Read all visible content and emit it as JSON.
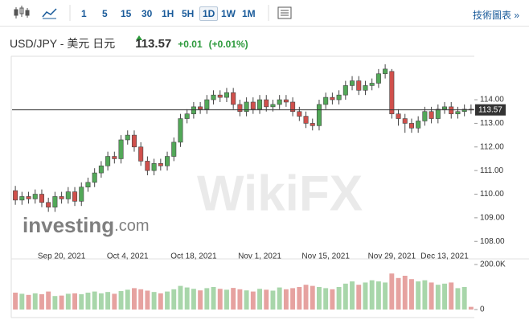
{
  "toolbar": {
    "intervals": [
      "1",
      "5",
      "15",
      "30",
      "1H",
      "5H",
      "1D",
      "1W",
      "1M"
    ],
    "selected_index": 6,
    "link": "技術圖表 »"
  },
  "header": {
    "title": "USD/JPY - 美元 日元",
    "last": 113.57,
    "change": "+0.01",
    "change_pct": "(+0.01%)"
  },
  "watermark": {
    "logo": "investing",
    "domain": ".com",
    "brand": "WikiFX"
  },
  "chart_data": {
    "type": "candlestick",
    "categories": [
      null,
      null,
      null,
      null,
      null,
      null,
      null,
      "Sep 20, 2021",
      null,
      null,
      null,
      null,
      null,
      null,
      null,
      null,
      null,
      "Oct 4, 2021",
      null,
      null,
      null,
      null,
      null,
      null,
      null,
      null,
      null,
      "Oct 18, 2021",
      null,
      null,
      null,
      null,
      null,
      null,
      null,
      null,
      null,
      "Nov 1, 2021",
      null,
      null,
      null,
      null,
      null,
      null,
      null,
      null,
      null,
      "Nov 15, 2021",
      null,
      null,
      null,
      null,
      null,
      null,
      null,
      null,
      null,
      "Nov 29, 2021",
      null,
      null,
      null,
      null,
      null,
      null,
      null,
      "Dec 13, 2021",
      null,
      null,
      null,
      null
    ],
    "open": [
      110.15,
      109.75,
      109.9,
      109.8,
      110.0,
      109.65,
      109.45,
      109.9,
      109.8,
      110.1,
      109.7,
      110.3,
      110.5,
      110.9,
      111.2,
      111.6,
      111.5,
      112.3,
      112.5,
      112.0,
      111.4,
      111.0,
      111.3,
      111.2,
      111.6,
      112.2,
      113.2,
      113.4,
      113.7,
      113.6,
      114.0,
      114.2,
      114.1,
      114.3,
      113.8,
      113.5,
      113.9,
      113.6,
      114.0,
      113.7,
      113.8,
      114.0,
      113.9,
      113.5,
      113.3,
      113.0,
      112.9,
      113.8,
      114.1,
      114.0,
      114.2,
      114.6,
      114.8,
      114.4,
      114.6,
      114.7,
      115.1,
      115.2,
      113.4,
      113.2,
      113.0,
      112.8,
      113.1,
      113.5,
      113.2,
      113.6,
      113.7,
      113.4,
      113.5,
      113.6
    ],
    "high": [
      110.35,
      110.1,
      110.1,
      110.2,
      110.2,
      109.85,
      110.1,
      110.1,
      110.3,
      110.3,
      110.5,
      110.7,
      111.1,
      111.4,
      111.8,
      111.8,
      112.5,
      112.7,
      112.7,
      112.2,
      111.6,
      111.5,
      111.5,
      111.8,
      112.4,
      113.4,
      113.6,
      113.9,
      113.9,
      114.2,
      114.4,
      114.4,
      114.5,
      114.5,
      114.0,
      114.1,
      114.1,
      114.2,
      114.2,
      114.0,
      114.2,
      114.2,
      114.1,
      113.7,
      113.5,
      113.2,
      114.0,
      114.3,
      114.3,
      114.4,
      114.8,
      115.0,
      115.0,
      114.8,
      114.9,
      115.3,
      115.5,
      115.3,
      113.6,
      113.4,
      113.2,
      113.3,
      113.7,
      113.7,
      113.8,
      113.9,
      113.9,
      113.7,
      113.8,
      113.8
    ],
    "low": [
      109.55,
      109.55,
      109.6,
      109.6,
      109.45,
      109.25,
      109.25,
      109.6,
      109.6,
      109.5,
      109.5,
      110.1,
      110.3,
      110.7,
      111.0,
      111.3,
      111.3,
      112.1,
      111.8,
      111.2,
      110.8,
      110.8,
      111.0,
      111.0,
      111.4,
      112.0,
      113.0,
      113.2,
      113.4,
      113.4,
      113.8,
      113.9,
      113.9,
      113.6,
      113.3,
      113.3,
      113.4,
      113.4,
      113.5,
      113.5,
      113.6,
      113.7,
      113.3,
      113.1,
      112.8,
      112.7,
      112.7,
      113.6,
      113.8,
      113.8,
      114.0,
      114.4,
      114.2,
      114.2,
      114.4,
      114.5,
      114.9,
      113.2,
      112.9,
      112.6,
      112.6,
      112.6,
      112.9,
      113.0,
      113.0,
      113.4,
      113.2,
      113.2,
      113.3,
      113.4
    ],
    "close": [
      109.75,
      109.9,
      109.8,
      110.0,
      109.65,
      109.45,
      109.9,
      109.8,
      110.1,
      109.7,
      110.3,
      110.5,
      110.9,
      111.2,
      111.6,
      111.5,
      112.3,
      112.5,
      112.0,
      111.4,
      111.0,
      111.3,
      111.2,
      111.6,
      112.2,
      113.2,
      113.4,
      113.7,
      113.6,
      114.0,
      114.2,
      114.1,
      114.3,
      113.8,
      113.5,
      113.9,
      113.6,
      114.0,
      113.7,
      113.8,
      114.0,
      113.9,
      113.5,
      113.3,
      113.0,
      112.9,
      113.8,
      114.1,
      114.0,
      114.2,
      114.6,
      114.8,
      114.4,
      114.6,
      114.7,
      115.1,
      115.3,
      113.4,
      113.2,
      113.0,
      112.8,
      113.1,
      113.5,
      113.2,
      113.6,
      113.7,
      113.4,
      113.5,
      113.6,
      113.57
    ],
    "volume": [
      75000,
      70000,
      65000,
      72000,
      68000,
      80000,
      60000,
      62000,
      70000,
      72000,
      68000,
      75000,
      80000,
      72000,
      78000,
      70000,
      82000,
      88000,
      95000,
      90000,
      84000,
      78000,
      72000,
      80000,
      90000,
      105000,
      98000,
      92000,
      85000,
      95000,
      100000,
      92000,
      88000,
      96000,
      90000,
      85000,
      80000,
      92000,
      88000,
      84000,
      98000,
      90000,
      95000,
      100000,
      110000,
      105000,
      100000,
      95000,
      90000,
      100000,
      115000,
      125000,
      110000,
      120000,
      130000,
      125000,
      120000,
      160000,
      140000,
      150000,
      135000,
      125000,
      130000,
      120000,
      110000,
      115000,
      120000,
      95000,
      100000,
      12000
    ],
    "ylim": [
      107.6,
      115.67
    ],
    "yticks": [
      {
        "value": 108,
        "label": "108.00"
      },
      {
        "value": 109,
        "label": "109.00"
      },
      {
        "value": 110,
        "label": "110.00"
      },
      {
        "value": 111,
        "label": "111.00"
      },
      {
        "value": 112,
        "label": "112.00"
      },
      {
        "value": 113,
        "label": "113.00"
      },
      {
        "value": 114,
        "label": "114.00"
      }
    ],
    "volume_lim": [
      0,
      225000
    ],
    "volume_ticks": [
      0,
      {
        "value": 200000,
        "label": "200.0K"
      }
    ],
    "up_color": "#52a858",
    "down_color": "#d0504c",
    "volume_up_color": "#a8d6aa",
    "volume_down_color": "#e6a2a0"
  }
}
